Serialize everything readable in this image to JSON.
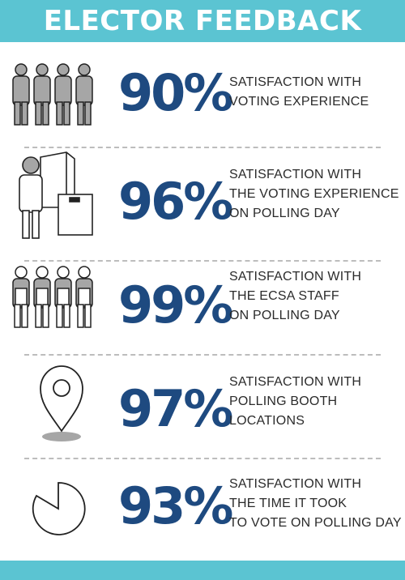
{
  "header": {
    "title": "ELECTOR FEEDBACK"
  },
  "colors": {
    "banner": "#5bc4d2",
    "percent": "#1e4a80",
    "icon_gray": "#a6a6a6",
    "divider": "#bdbdbd"
  },
  "stats": [
    {
      "icon": "people-group-icon",
      "value": "90%",
      "lines": [
        "SATISFACTION WITH",
        "VOTING EXPERIENCE"
      ]
    },
    {
      "icon": "voter-ballot-box-icon",
      "value": "96%",
      "lines": [
        "SATISFACTION WITH",
        "THE VOTING EXPERIENCE",
        "ON POLLING DAY"
      ]
    },
    {
      "icon": "staff-group-icon",
      "value": "99%",
      "lines": [
        "SATISFACTION WITH",
        "THE ECSA STAFF",
        "ON POLLING DAY"
      ]
    },
    {
      "icon": "location-pin-icon",
      "value": "97%",
      "lines": [
        "SATISFACTION WITH",
        "POLLING BOOTH",
        "LOCATIONS"
      ]
    },
    {
      "icon": "pie-clock-icon",
      "value": "93%",
      "lines": [
        "SATISFACTION WITH",
        "THE TIME IT TOOK",
        "TO VOTE ON POLLING DAY"
      ]
    }
  ]
}
